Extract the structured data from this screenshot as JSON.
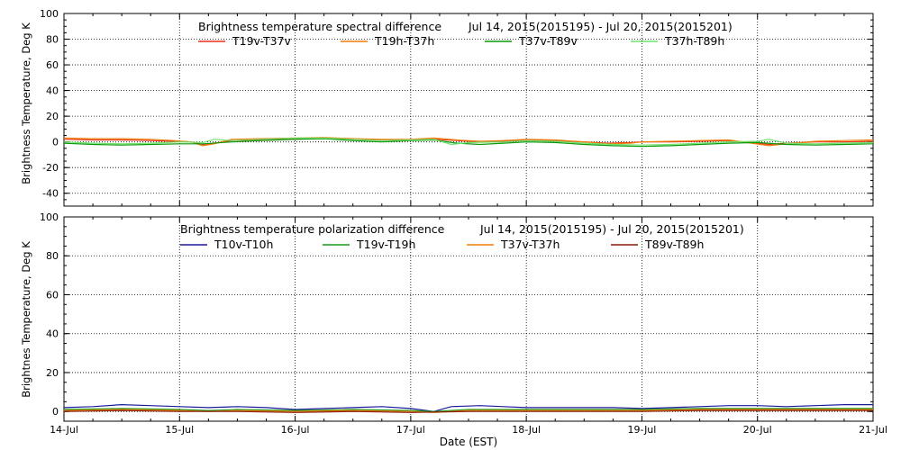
{
  "chart_data": [
    {
      "type": "line",
      "title": "Brightness temperature spectral difference",
      "date_range": "Jul 14, 2015(2015195) - Jul 20, 2015(2015201)",
      "ylabel": "Brightness Temperature, Deg K",
      "xlabel": "",
      "ylim": [
        -50,
        100
      ],
      "yticks": [
        -40,
        -20,
        0,
        20,
        40,
        60,
        80,
        100
      ],
      "xlim": [
        "14-Jul",
        "21-Jul"
      ],
      "grid": true,
      "legend_position": "top",
      "series": [
        {
          "name": "T19v-T37v",
          "color": "#e8301a",
          "points": [
            [
              0,
              2
            ],
            [
              0.25,
              1.5
            ],
            [
              0.5,
              1.5
            ],
            [
              0.75,
              1
            ],
            [
              0.95,
              0.5
            ],
            [
              1.1,
              0
            ],
            [
              1.2,
              -2
            ],
            [
              1.3,
              -1
            ],
            [
              1.45,
              1
            ],
            [
              1.7,
              1.5
            ],
            [
              2,
              2.5
            ],
            [
              2.25,
              3
            ],
            [
              2.5,
              2
            ],
            [
              2.75,
              1.5
            ],
            [
              3,
              1.5
            ],
            [
              3.2,
              2
            ],
            [
              3.4,
              1
            ],
            [
              3.6,
              0
            ],
            [
              3.8,
              0.5
            ],
            [
              4,
              1.5
            ],
            [
              4.25,
              1
            ],
            [
              4.5,
              0
            ],
            [
              4.7,
              -1
            ],
            [
              4.9,
              -0.5
            ],
            [
              5,
              0
            ],
            [
              5.25,
              0
            ],
            [
              5.5,
              0.5
            ],
            [
              5.75,
              1
            ],
            [
              5.95,
              -0.5
            ],
            [
              6.1,
              -2
            ],
            [
              6.25,
              -1
            ],
            [
              6.5,
              0
            ],
            [
              6.75,
              0
            ],
            [
              7,
              0.5
            ]
          ]
        },
        {
          "name": "T19h-T37h",
          "color": "#f07d0a",
          "points": [
            [
              0,
              3
            ],
            [
              0.25,
              2.5
            ],
            [
              0.5,
              2.5
            ],
            [
              0.75,
              2
            ],
            [
              0.95,
              1
            ],
            [
              1.1,
              0
            ],
            [
              1.2,
              -3
            ],
            [
              1.3,
              -1.5
            ],
            [
              1.45,
              2
            ],
            [
              1.7,
              2.5
            ],
            [
              2,
              3
            ],
            [
              2.25,
              3.5
            ],
            [
              2.5,
              2.5
            ],
            [
              2.75,
              2
            ],
            [
              3,
              2
            ],
            [
              3.2,
              3
            ],
            [
              3.4,
              1.5
            ],
            [
              3.6,
              0.5
            ],
            [
              3.8,
              1
            ],
            [
              4,
              2
            ],
            [
              4.25,
              1.5
            ],
            [
              4.5,
              0
            ],
            [
              4.7,
              -1.5
            ],
            [
              4.9,
              -1
            ],
            [
              5,
              0
            ],
            [
              5.25,
              0.5
            ],
            [
              5.5,
              1
            ],
            [
              5.75,
              1.5
            ],
            [
              5.95,
              -1
            ],
            [
              6.1,
              -3
            ],
            [
              6.25,
              -1.5
            ],
            [
              6.5,
              0.5
            ],
            [
              6.75,
              1
            ],
            [
              7,
              1.5
            ]
          ]
        },
        {
          "name": "T37v-T89v",
          "color": "#0a9a0a",
          "points": [
            [
              0,
              -1
            ],
            [
              0.25,
              -2
            ],
            [
              0.5,
              -2.5
            ],
            [
              0.75,
              -2
            ],
            [
              1,
              -1.5
            ],
            [
              1.2,
              -1.5
            ],
            [
              1.45,
              0
            ],
            [
              1.7,
              1
            ],
            [
              2,
              2
            ],
            [
              2.25,
              2.5
            ],
            [
              2.5,
              1
            ],
            [
              2.75,
              0
            ],
            [
              3,
              1
            ],
            [
              3.2,
              1.5
            ],
            [
              3.4,
              -1
            ],
            [
              3.6,
              -2
            ],
            [
              3.8,
              -1
            ],
            [
              4,
              0
            ],
            [
              4.25,
              -0.5
            ],
            [
              4.5,
              -2
            ],
            [
              4.75,
              -3
            ],
            [
              5,
              -3.5
            ],
            [
              5.25,
              -3
            ],
            [
              5.5,
              -2
            ],
            [
              5.75,
              -1
            ],
            [
              6,
              -0.5
            ],
            [
              6.25,
              -2
            ],
            [
              6.5,
              -2.5
            ],
            [
              6.75,
              -2
            ],
            [
              7,
              -1.5
            ]
          ]
        },
        {
          "name": "T37h-T89h",
          "color": "#6ee46e",
          "points": [
            [
              0,
              0
            ],
            [
              0.25,
              -1
            ],
            [
              0.5,
              -1.5
            ],
            [
              0.75,
              -1
            ],
            [
              1,
              0
            ],
            [
              1.2,
              -0.5
            ],
            [
              1.3,
              2
            ],
            [
              1.45,
              1
            ],
            [
              1.7,
              2
            ],
            [
              2,
              3
            ],
            [
              2.25,
              3
            ],
            [
              2.5,
              2
            ],
            [
              2.75,
              1
            ],
            [
              3,
              1.5
            ],
            [
              3.2,
              2
            ],
            [
              3.35,
              -2
            ],
            [
              3.5,
              -0.5
            ],
            [
              3.8,
              0
            ],
            [
              4,
              1
            ],
            [
              4.25,
              0.5
            ],
            [
              4.5,
              -1
            ],
            [
              4.75,
              -2
            ],
            [
              5,
              -2.5
            ],
            [
              5.25,
              -2
            ],
            [
              5.5,
              -1
            ],
            [
              5.75,
              0
            ],
            [
              6,
              0.5
            ],
            [
              6.1,
              2
            ],
            [
              6.25,
              -1
            ],
            [
              6.5,
              -1.5
            ],
            [
              6.75,
              -1
            ],
            [
              7,
              -0.5
            ]
          ]
        }
      ]
    },
    {
      "type": "line",
      "title": "Brightness temperature polarization difference",
      "date_range": "Jul 14, 2015(2015195) - Jul 20, 2015(2015201)",
      "ylabel": "Brightnes Temperature, Deg K",
      "xlabel": "Date (EST)",
      "ylim": [
        -5,
        100
      ],
      "yticks": [
        0,
        20,
        40,
        60,
        80,
        100
      ],
      "xlim": [
        "14-Jul",
        "21-Jul"
      ],
      "xticks": [
        "14-Jul",
        "15-Jul",
        "16-Jul",
        "17-Jul",
        "18-Jul",
        "19-Jul",
        "20-Jul",
        "21-Jul"
      ],
      "grid": true,
      "legend_position": "top",
      "series": [
        {
          "name": "T10v-T10h",
          "color": "#1a1a9a",
          "points": [
            [
              0,
              2
            ],
            [
              0.25,
              2.5
            ],
            [
              0.5,
              3.5
            ],
            [
              0.75,
              3
            ],
            [
              1,
              2.5
            ],
            [
              1.25,
              2
            ],
            [
              1.5,
              2.5
            ],
            [
              1.75,
              2
            ],
            [
              2,
              1
            ],
            [
              2.25,
              1.5
            ],
            [
              2.5,
              2
            ],
            [
              2.75,
              2.5
            ],
            [
              3,
              1.5
            ],
            [
              3.2,
              0
            ],
            [
              3.35,
              2.5
            ],
            [
              3.6,
              3
            ],
            [
              3.8,
              2.5
            ],
            [
              4,
              2
            ],
            [
              4.25,
              2
            ],
            [
              4.5,
              2
            ],
            [
              4.75,
              2
            ],
            [
              5,
              1.5
            ],
            [
              5.25,
              2
            ],
            [
              5.5,
              2.5
            ],
            [
              5.75,
              3
            ],
            [
              6,
              3
            ],
            [
              6.25,
              2.5
            ],
            [
              6.5,
              3
            ],
            [
              6.75,
              3.5
            ],
            [
              7,
              3.5
            ]
          ]
        },
        {
          "name": "T19v-T19h",
          "color": "#1a9a1a",
          "points": [
            [
              0,
              1
            ],
            [
              0.5,
              1.5
            ],
            [
              1,
              1
            ],
            [
              1.25,
              0.5
            ],
            [
              1.5,
              1
            ],
            [
              2,
              0.5
            ],
            [
              2.5,
              1
            ],
            [
              3,
              0.5
            ],
            [
              3.2,
              0
            ],
            [
              3.5,
              1
            ],
            [
              4,
              1
            ],
            [
              4.5,
              1
            ],
            [
              5,
              1
            ],
            [
              5.5,
              1.5
            ],
            [
              6,
              1.5
            ],
            [
              6.5,
              1.5
            ],
            [
              7,
              1.5
            ]
          ]
        },
        {
          "name": "T37v-T37h",
          "color": "#f07d0a",
          "points": [
            [
              0,
              0.5
            ],
            [
              0.5,
              1
            ],
            [
              1,
              0.5
            ],
            [
              1.25,
              0
            ],
            [
              1.5,
              0.5
            ],
            [
              2,
              0
            ],
            [
              2.5,
              0.5
            ],
            [
              3,
              0
            ],
            [
              3.2,
              -0.5
            ],
            [
              3.5,
              0.5
            ],
            [
              4,
              0.5
            ],
            [
              4.5,
              0.5
            ],
            [
              5,
              0.5
            ],
            [
              5.5,
              1
            ],
            [
              6,
              1
            ],
            [
              6.5,
              1
            ],
            [
              7,
              1
            ]
          ]
        },
        {
          "name": "T89v-T89h",
          "color": "#8a1a0a",
          "points": [
            [
              0,
              0
            ],
            [
              0.5,
              0.5
            ],
            [
              1,
              0
            ],
            [
              1.5,
              0
            ],
            [
              2,
              -0.5
            ],
            [
              2.5,
              0
            ],
            [
              3,
              -0.5
            ],
            [
              3.5,
              0
            ],
            [
              4,
              0
            ],
            [
              4.5,
              0
            ],
            [
              5,
              0
            ],
            [
              5.5,
              0.5
            ],
            [
              6,
              0.5
            ],
            [
              6.5,
              0.5
            ],
            [
              7,
              0.5
            ]
          ]
        }
      ]
    }
  ]
}
